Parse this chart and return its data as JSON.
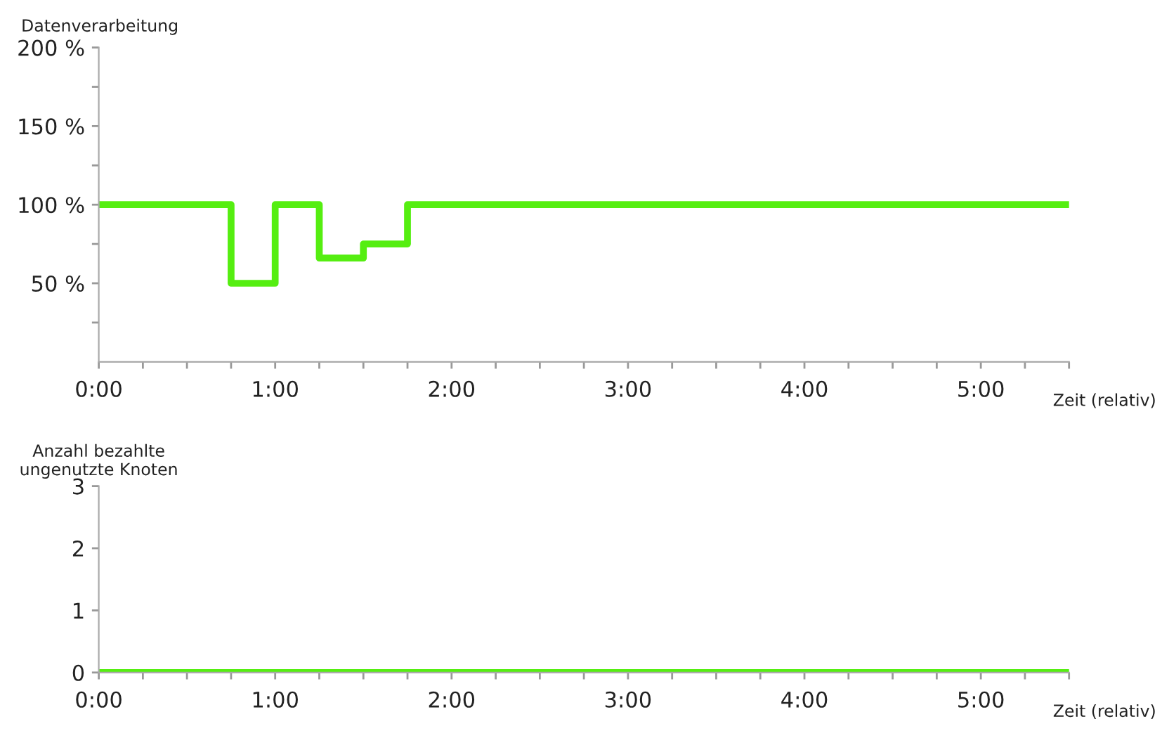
{
  "chart_data": [
    {
      "type": "step",
      "ylabel": "Datenverarbeitung",
      "xlabel": "Zeit (relativ)",
      "x": [
        0,
        0.75,
        1,
        1.25,
        1.5,
        1.75,
        5.5
      ],
      "series": [
        {
          "values": [
            100,
            50,
            100,
            66,
            75,
            100,
            100
          ],
          "color": "#55ee11"
        }
      ],
      "xlim": [
        0,
        5.5
      ],
      "xticks": [
        {
          "value": 0,
          "label": "0:00"
        },
        {
          "value": 0.25,
          "label": null
        },
        {
          "value": 0.5,
          "label": null
        },
        {
          "value": 0.75,
          "label": null
        },
        {
          "value": 1,
          "label": "1:00"
        },
        {
          "value": 1.25,
          "label": null
        },
        {
          "value": 1.5,
          "label": null
        },
        {
          "value": 1.75,
          "label": null
        },
        {
          "value": 2,
          "label": "2:00"
        },
        {
          "value": 2.25,
          "label": null
        },
        {
          "value": 2.5,
          "label": null
        },
        {
          "value": 2.75,
          "label": null
        },
        {
          "value": 3,
          "label": "3:00"
        },
        {
          "value": 3.25,
          "label": null
        },
        {
          "value": 3.5,
          "label": null
        },
        {
          "value": 3.75,
          "label": null
        },
        {
          "value": 4,
          "label": "4:00"
        },
        {
          "value": 4.25,
          "label": null
        },
        {
          "value": 4.5,
          "label": null
        },
        {
          "value": 4.75,
          "label": null
        },
        {
          "value": 5,
          "label": "5:00"
        },
        {
          "value": 5.25,
          "label": null
        },
        {
          "value": 5.5,
          "label": null
        }
      ],
      "ylim": [
        0,
        200
      ],
      "yticks": [
        {
          "value": 25,
          "label": null
        },
        {
          "value": 50,
          "label": "50 %"
        },
        {
          "value": 75,
          "label": null
        },
        {
          "value": 100,
          "label": "100 %"
        },
        {
          "value": 125,
          "label": null
        },
        {
          "value": 150,
          "label": "150 %"
        },
        {
          "value": 175,
          "label": null
        },
        {
          "value": 200,
          "label": "200 %"
        }
      ],
      "grid": false,
      "legend": false
    },
    {
      "type": "step",
      "ylabel": "Anzahl bezahlte\nungenutzte Knoten",
      "xlabel": "Zeit (relativ)",
      "x": [
        0,
        5.5
      ],
      "series": [
        {
          "values": [
            0,
            0
          ],
          "color": "#55ee11"
        }
      ],
      "xlim": [
        0,
        5.5
      ],
      "xticks": [
        {
          "value": 0,
          "label": "0:00"
        },
        {
          "value": 0.25,
          "label": null
        },
        {
          "value": 0.5,
          "label": null
        },
        {
          "value": 0.75,
          "label": null
        },
        {
          "value": 1,
          "label": "1:00"
        },
        {
          "value": 1.25,
          "label": null
        },
        {
          "value": 1.5,
          "label": null
        },
        {
          "value": 1.75,
          "label": null
        },
        {
          "value": 2,
          "label": "2:00"
        },
        {
          "value": 2.25,
          "label": null
        },
        {
          "value": 2.5,
          "label": null
        },
        {
          "value": 2.75,
          "label": null
        },
        {
          "value": 3,
          "label": "3:00"
        },
        {
          "value": 3.25,
          "label": null
        },
        {
          "value": 3.5,
          "label": null
        },
        {
          "value": 3.75,
          "label": null
        },
        {
          "value": 4,
          "label": "4:00"
        },
        {
          "value": 4.25,
          "label": null
        },
        {
          "value": 4.5,
          "label": null
        },
        {
          "value": 4.75,
          "label": null
        },
        {
          "value": 5,
          "label": "5:00"
        },
        {
          "value": 5.25,
          "label": null
        },
        {
          "value": 5.5,
          "label": null
        }
      ],
      "ylim": [
        0,
        3
      ],
      "yticks": [
        0,
        1,
        2,
        3
      ],
      "grid": false,
      "legend": false
    }
  ]
}
